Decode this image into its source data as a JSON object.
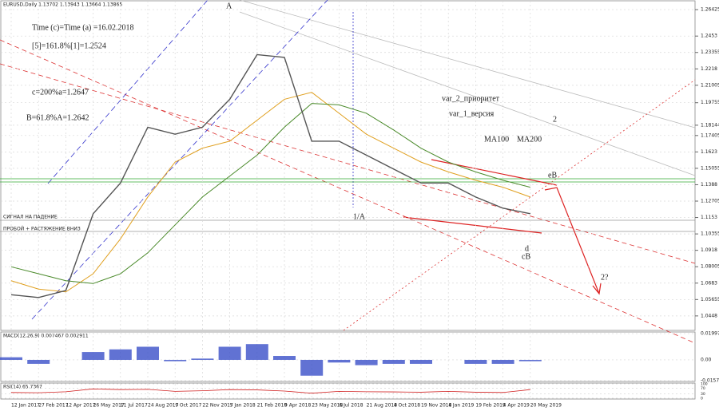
{
  "chart_data": {
    "type": "line",
    "title": "EURUSD,Daily 1.13702 1.13943 1.13664 1.13865",
    "categories": [
      "12 Jan 2017",
      "27 Feb 2017",
      "12 Apr 2017",
      "26 May 2017",
      "11 Jul 2017",
      "24 Aug 2017",
      "9 Oct 2017",
      "22 Nov 2017",
      "5 Jan 2018",
      "21 Feb 2018",
      "9 Apr 2018",
      "23 May 2018",
      "6 Jul 2018",
      "21 Aug 2018",
      "4 Oct 2018",
      "19 Nov 2018",
      "4 Jan 2019",
      "19 Feb 2019",
      "4 Apr 2019",
      "20 May 2019"
    ],
    "values": [
      1.06,
      1.058,
      1.063,
      1.118,
      1.14,
      1.18,
      1.175,
      1.18,
      1.2,
      1.232,
      1.23,
      1.17,
      1.17,
      1.16,
      1.15,
      1.14,
      1.14,
      1.13,
      1.122,
      1.118
    ],
    "color": "#555555",
    "series": [
      {
        "name": "MA100",
        "color": "#e0a020",
        "values": [
          1.07,
          1.064,
          1.062,
          1.075,
          1.1,
          1.13,
          1.155,
          1.165,
          1.17,
          1.185,
          1.2,
          1.205,
          1.19,
          1.175,
          1.165,
          1.155,
          1.148,
          1.142,
          1.137,
          1.13
        ]
      },
      {
        "name": "MA200",
        "color": "#4a8a2a",
        "values": [
          1.08,
          1.075,
          1.07,
          1.068,
          1.075,
          1.09,
          1.11,
          1.13,
          1.145,
          1.16,
          1.18,
          1.197,
          1.196,
          1.19,
          1.178,
          1.165,
          1.155,
          1.148,
          1.142,
          1.137
        ]
      }
    ],
    "ylim": [
      1.035,
      1.27
    ],
    "yticks": [
      1.26425,
      1.2453,
      1.23355,
      1.2218,
      1.21005,
      1.19755,
      1.18144,
      1.17405,
      1.1623,
      1.15055,
      1.1388,
      1.12705,
      1.1153,
      1.10355,
      1.0918,
      1.08005,
      1.0683,
      1.05655,
      1.0448
    ],
    "grid": true,
    "annotations": [
      "Time (c)=Time (a) =16.02.2018",
      "[5]=161.8%[1]=1.2524",
      "c=200%a=1.2647",
      "B=61.8%A=1.2642",
      "var_2_приоритет",
      "var_1_версия",
      "СИГНАЛ НА ПАДЕНИЕ",
      "ПРОБОЙ + РАСТЯЖЕНИЕ ВНИЗ",
      "1/A",
      "eB",
      "2",
      "2?",
      "A",
      "d",
      "cB"
    ],
    "macd": {
      "title": "MACD(12,26,9) 0.007467 0.002911",
      "color": "#3a4fc8",
      "values": [
        0.002,
        -0.003,
        0.0,
        0.006,
        0.008,
        0.01,
        -0.001,
        0.001,
        0.01,
        0.012,
        0.003,
        -0.012,
        -0.002,
        -0.004,
        -0.003,
        -0.003,
        0.0,
        -0.003,
        -0.003,
        -0.001
      ],
      "ylim": [
        -0.0158,
        0.02
      ],
      "yticks": [
        0.019976,
        {
          "value": 0,
          "label": "0.00"
        },
        -0.015774
      ]
    },
    "rsi": {
      "title": "RSI(14) 65.7367",
      "color": "#d02020",
      "values": [
        40,
        38,
        45,
        65,
        60,
        62,
        48,
        52,
        60,
        58,
        50,
        35,
        48,
        45,
        44,
        42,
        48,
        42,
        40,
        60
      ],
      "ylim": [
        0,
        100
      ],
      "yticks": [
        100,
        70,
        30,
        0
      ]
    }
  }
}
